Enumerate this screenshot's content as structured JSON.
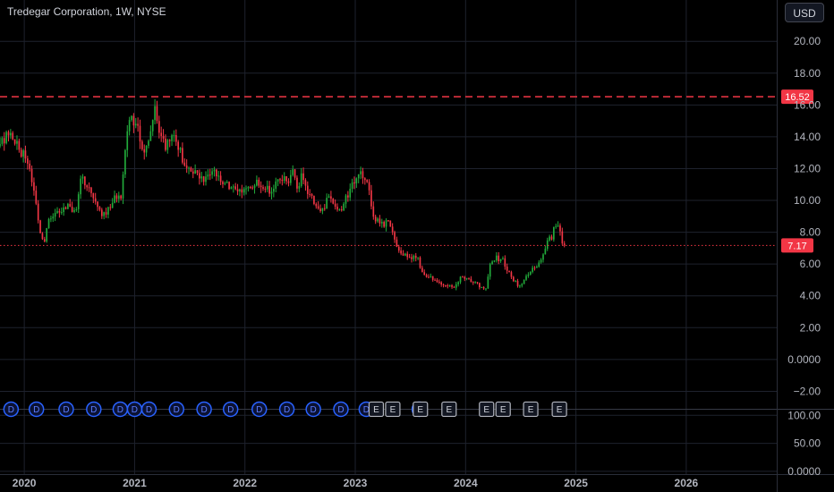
{
  "header": {
    "symbol_title": "Tredegar Corporation, 1W, NYSE",
    "currency_button": "USD"
  },
  "colors": {
    "up": "#22ab3b",
    "down": "#f23645",
    "resistance_line": "#f23645",
    "current_line": "#f23645",
    "dividend_marker": "#2962ff",
    "earnings_marker": "#b2b5be",
    "grid": "#1e222d",
    "background": "#000000"
  },
  "chart_data": {
    "type": "candlestick",
    "title": "Tredegar Corporation, 1W, NYSE",
    "interval": "1W",
    "currency": "USD",
    "x_range": [
      2019.78,
      2026.82
    ],
    "x_ticks": [
      {
        "value": 2020,
        "label": "2020"
      },
      {
        "value": 2021,
        "label": "2021"
      },
      {
        "value": 2022,
        "label": "2022"
      },
      {
        "value": 2023,
        "label": "2023"
      },
      {
        "value": 2024,
        "label": "2024"
      },
      {
        "value": 2025,
        "label": "2025"
      },
      {
        "value": 2026,
        "label": "2026"
      }
    ],
    "price_axis": {
      "ylim": [
        -3.1,
        22.6
      ],
      "ticks": [
        {
          "value": 20,
          "label": "20.00"
        },
        {
          "value": 18,
          "label": "18.00"
        },
        {
          "value": 16,
          "label": "16.00"
        },
        {
          "value": 14,
          "label": "14.00"
        },
        {
          "value": 12,
          "label": "12.00"
        },
        {
          "value": 10,
          "label": "10.00"
        },
        {
          "value": 8,
          "label": "8.00"
        },
        {
          "value": 6,
          "label": "6.00"
        },
        {
          "value": 4,
          "label": "4.00"
        },
        {
          "value": 2,
          "label": "2.00"
        },
        {
          "value": 0,
          "label": "0.0000"
        },
        {
          "value": -2,
          "label": "−2.00"
        }
      ]
    },
    "lower_pane": {
      "ylim": [
        -5,
        110
      ],
      "ticks": [
        {
          "value": 100,
          "label": "100.00"
        },
        {
          "value": 50,
          "label": "50.00"
        },
        {
          "value": 0,
          "label": "0.0000"
        }
      ]
    },
    "price_lines": [
      {
        "name": "resistance",
        "value": 16.52,
        "label": "16.52",
        "style": "dashed"
      },
      {
        "name": "last-price",
        "value": 7.17,
        "label": "7.17",
        "style": "dotted"
      }
    ],
    "anchors": [
      [
        2019.78,
        13.4
      ],
      [
        2019.84,
        14.2
      ],
      [
        2019.9,
        13.9
      ],
      [
        2019.96,
        13.2
      ],
      [
        2020.04,
        12.4
      ],
      [
        2020.1,
        10.2
      ],
      [
        2020.14,
        8.2
      ],
      [
        2020.18,
        7.3
      ],
      [
        2020.22,
        8.7
      ],
      [
        2020.28,
        9.4
      ],
      [
        2020.34,
        9.3
      ],
      [
        2020.4,
        9.7
      ],
      [
        2020.46,
        9.1
      ],
      [
        2020.52,
        11.5
      ],
      [
        2020.58,
        10.8
      ],
      [
        2020.64,
        9.9
      ],
      [
        2020.7,
        9.2
      ],
      [
        2020.76,
        9.4
      ],
      [
        2020.82,
        10.3
      ],
      [
        2020.88,
        10.1
      ],
      [
        2020.92,
        13.8
      ],
      [
        2020.97,
        15.2
      ],
      [
        2021.02,
        14.7
      ],
      [
        2021.08,
        13.2
      ],
      [
        2021.14,
        13.9
      ],
      [
        2021.18,
        16.4
      ],
      [
        2021.22,
        14.4
      ],
      [
        2021.28,
        13.5
      ],
      [
        2021.34,
        14.1
      ],
      [
        2021.4,
        13.3
      ],
      [
        2021.46,
        12.1
      ],
      [
        2021.52,
        11.7
      ],
      [
        2021.58,
        11.6
      ],
      [
        2021.64,
        11.4
      ],
      [
        2021.7,
        11.8
      ],
      [
        2021.76,
        11.5
      ],
      [
        2021.82,
        11.0
      ],
      [
        2021.88,
        10.7
      ],
      [
        2021.94,
        10.6
      ],
      [
        2022.0,
        10.9
      ],
      [
        2022.06,
        10.6
      ],
      [
        2022.12,
        11.2
      ],
      [
        2022.18,
        10.8
      ],
      [
        2022.24,
        10.5
      ],
      [
        2022.3,
        11.3
      ],
      [
        2022.36,
        11.6
      ],
      [
        2022.4,
        11.1
      ],
      [
        2022.44,
        11.9
      ],
      [
        2022.48,
        10.8
      ],
      [
        2022.52,
        11.6
      ],
      [
        2022.58,
        10.4
      ],
      [
        2022.64,
        9.6
      ],
      [
        2022.7,
        9.3
      ],
      [
        2022.76,
        10.4
      ],
      [
        2022.82,
        9.5
      ],
      [
        2022.86,
        9.2
      ],
      [
        2022.92,
        10.2
      ],
      [
        2022.96,
        10.6
      ],
      [
        2023.0,
        11.5
      ],
      [
        2023.04,
        11.8
      ],
      [
        2023.08,
        11.6
      ],
      [
        2023.12,
        11.0
      ],
      [
        2023.16,
        9.1
      ],
      [
        2023.2,
        8.7
      ],
      [
        2023.26,
        8.4
      ],
      [
        2023.3,
        8.9
      ],
      [
        2023.34,
        8.1
      ],
      [
        2023.38,
        6.9
      ],
      [
        2023.44,
        6.6
      ],
      [
        2023.5,
        6.3
      ],
      [
        2023.56,
        6.5
      ],
      [
        2023.6,
        5.6
      ],
      [
        2023.66,
        5.2
      ],
      [
        2023.72,
        5.1
      ],
      [
        2023.78,
        4.8
      ],
      [
        2023.84,
        4.6
      ],
      [
        2023.9,
        4.5
      ],
      [
        2023.96,
        5.3
      ],
      [
        2024.02,
        5.0
      ],
      [
        2024.08,
        4.8
      ],
      [
        2024.14,
        4.6
      ],
      [
        2024.18,
        4.3
      ],
      [
        2024.22,
        5.9
      ],
      [
        2024.28,
        6.4
      ],
      [
        2024.34,
        6.2
      ],
      [
        2024.38,
        5.5
      ],
      [
        2024.44,
        5.0
      ],
      [
        2024.48,
        4.6
      ],
      [
        2024.52,
        4.8
      ],
      [
        2024.58,
        5.6
      ],
      [
        2024.64,
        5.9
      ],
      [
        2024.7,
        6.6
      ],
      [
        2024.74,
        7.4
      ],
      [
        2024.78,
        7.7
      ],
      [
        2024.82,
        8.6
      ],
      [
        2024.86,
        8.0
      ],
      [
        2024.88,
        7.0
      ],
      [
        2024.91,
        7.17
      ]
    ],
    "events": [
      {
        "type": "dividend",
        "label": "D",
        "x": 2019.88
      },
      {
        "type": "dividend",
        "label": "D",
        "x": 2020.11
      },
      {
        "type": "dividend",
        "label": "D",
        "x": 2020.38
      },
      {
        "type": "dividend",
        "label": "D",
        "x": 2020.63
      },
      {
        "type": "dividend",
        "label": "D",
        "x": 2020.87
      },
      {
        "type": "dividend",
        "label": "D",
        "x": 2021.0
      },
      {
        "type": "dividend",
        "label": "D",
        "x": 2021.13
      },
      {
        "type": "dividend",
        "label": "D",
        "x": 2021.38
      },
      {
        "type": "dividend",
        "label": "D",
        "x": 2021.63
      },
      {
        "type": "dividend",
        "label": "D",
        "x": 2021.87
      },
      {
        "type": "dividend",
        "label": "D",
        "x": 2022.13
      },
      {
        "type": "dividend",
        "label": "D",
        "x": 2022.38
      },
      {
        "type": "dividend",
        "label": "D",
        "x": 2022.62
      },
      {
        "type": "dividend",
        "label": "D",
        "x": 2022.87
      },
      {
        "type": "dividend",
        "label": "D",
        "x": 2023.1
      },
      {
        "type": "dividend",
        "label": "D",
        "x": 2023.58
      },
      {
        "type": "earnings",
        "label": "E",
        "x": 2023.19
      },
      {
        "type": "earnings",
        "label": "E",
        "x": 2023.34
      },
      {
        "type": "earnings",
        "label": "E",
        "x": 2023.59
      },
      {
        "type": "earnings",
        "label": "E",
        "x": 2023.85
      },
      {
        "type": "earnings",
        "label": "E",
        "x": 2024.19
      },
      {
        "type": "earnings",
        "label": "E",
        "x": 2024.34
      },
      {
        "type": "earnings",
        "label": "E",
        "x": 2024.59
      },
      {
        "type": "earnings",
        "label": "E",
        "x": 2024.85
      }
    ]
  }
}
